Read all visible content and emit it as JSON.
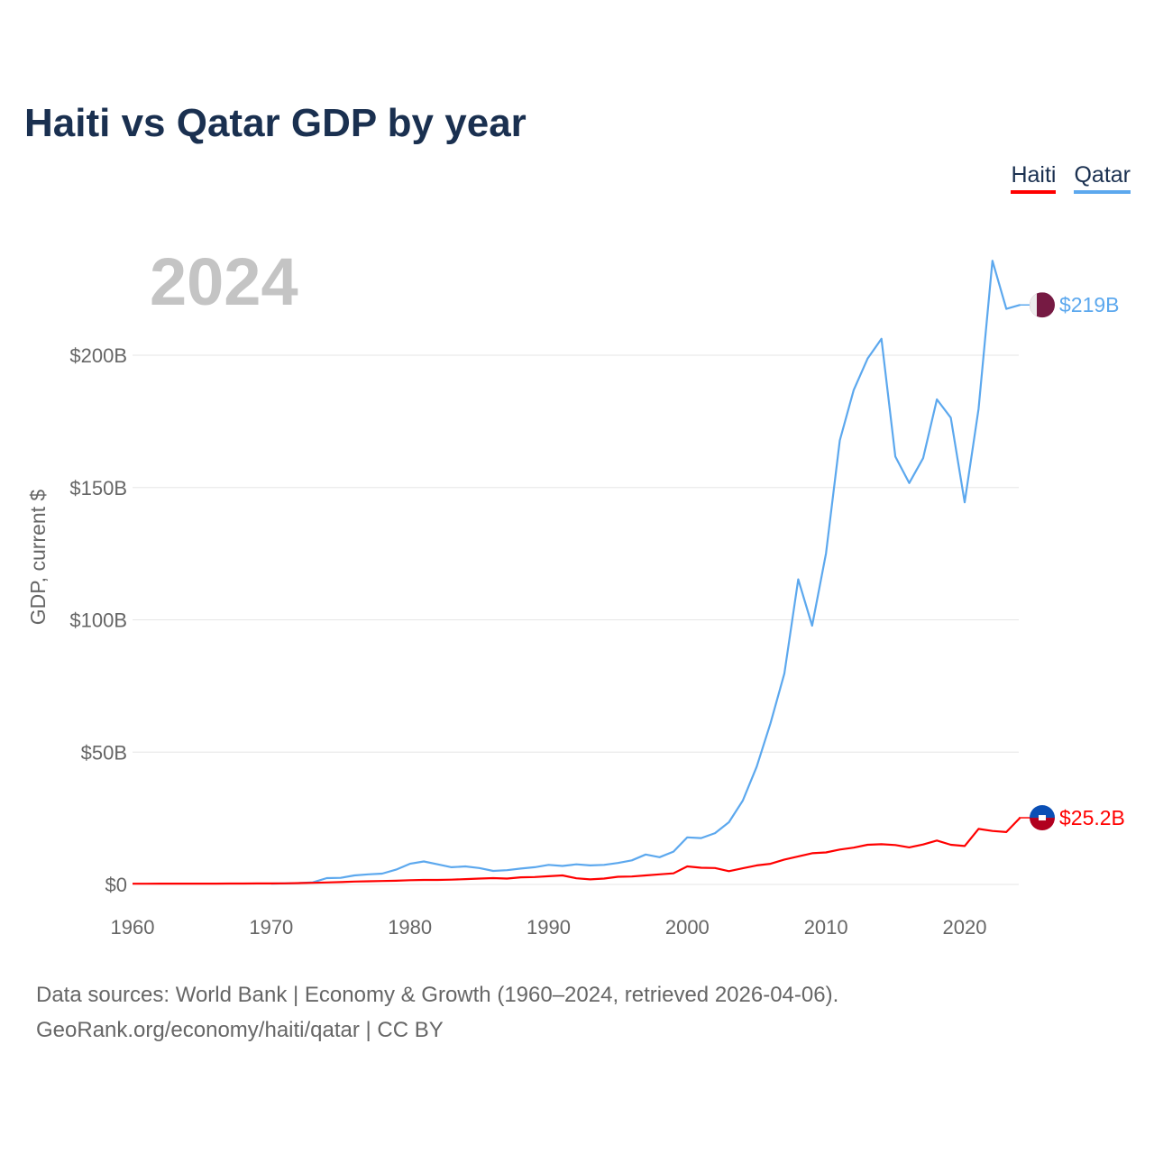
{
  "title": "Haiti vs Qatar GDP by year",
  "current_year_label": "2024",
  "source_lines": [
    "Data sources: World Bank | Economy & Growth (1960–2024, retrieved 2026-04-06).",
    "GeoRank.org/economy/haiti/qatar | CC BY"
  ],
  "chart_data": {
    "type": "line",
    "title": "Haiti vs Qatar GDP by year",
    "xlabel": "",
    "ylabel": "GDP, current $",
    "xlim": [
      1960,
      2024
    ],
    "ylim": [
      0,
      240
    ],
    "x_ticks": [
      1960,
      1970,
      1980,
      1990,
      2000,
      2010,
      2020
    ],
    "x_tick_labels": [
      "1960",
      "1970",
      "1980",
      "1990",
      "2000",
      "2010",
      "2020"
    ],
    "y_ticks": [
      0,
      50,
      100,
      150,
      200
    ],
    "y_tick_labels": [
      "$0",
      "$50B",
      "$100B",
      "$150B",
      "$200B"
    ],
    "grid": true,
    "legend_position": "top-right",
    "series": [
      {
        "name": "Haiti",
        "color": "#ff0000",
        "end_label": "$25.2B",
        "flag": "haiti-flag",
        "start_year": 1960,
        "values": [
          0.27,
          0.28,
          0.29,
          0.29,
          0.3,
          0.31,
          0.32,
          0.33,
          0.34,
          0.36,
          0.38,
          0.4,
          0.5,
          0.6,
          0.75,
          0.9,
          1.1,
          1.2,
          1.3,
          1.4,
          1.6,
          1.7,
          1.7,
          1.8,
          2.0,
          2.2,
          2.4,
          2.2,
          2.7,
          2.8,
          3.1,
          3.4,
          2.3,
          1.9,
          2.2,
          2.9,
          3.0,
          3.4,
          3.8,
          4.2,
          6.8,
          6.3,
          6.2,
          5.0,
          6.1,
          7.2,
          7.8,
          9.4,
          10.6,
          11.8,
          12.1,
          13.2,
          13.9,
          15.0,
          15.2,
          14.9,
          14.0,
          15.1,
          16.6,
          15.0,
          14.5,
          21.0,
          20.2,
          19.8,
          25.2
        ]
      },
      {
        "name": "Qatar",
        "color": "#5ca8ee",
        "end_label": "$219B",
        "flag": "qatar-flag",
        "start_year": 1970,
        "values": [
          0.3,
          0.4,
          0.5,
          0.8,
          2.4,
          2.5,
          3.4,
          3.8,
          4.1,
          5.6,
          7.8,
          8.7,
          7.6,
          6.5,
          6.8,
          6.2,
          5.1,
          5.4,
          6.0,
          6.5,
          7.4,
          7.0,
          7.6,
          7.2,
          7.4,
          8.1,
          9.1,
          11.3,
          10.3,
          12.4,
          17.8,
          17.5,
          19.4,
          23.5,
          31.7,
          44.5,
          60.9,
          79.7,
          115.3,
          97.8,
          125.1,
          167.8,
          186.8,
          198.7,
          206.2,
          161.7,
          151.7,
          161.1,
          183.3,
          176.4,
          144.4,
          179.7,
          235.7,
          217.5,
          219.0
        ]
      }
    ]
  }
}
